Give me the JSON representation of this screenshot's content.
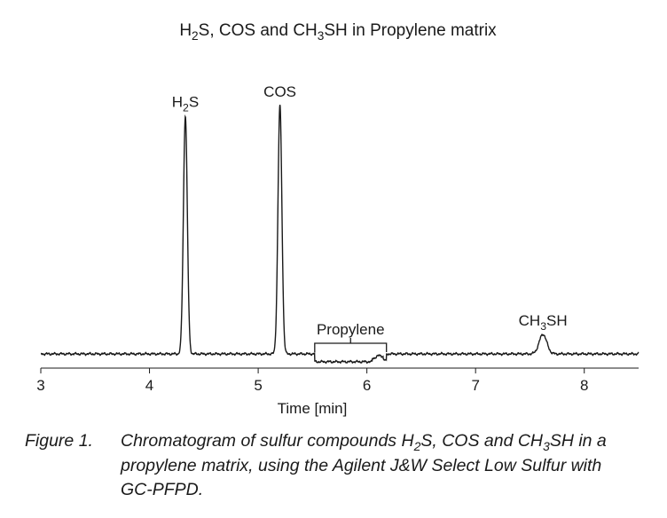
{
  "chart_data": {
    "type": "line",
    "title": {
      "parts": [
        "H",
        "2",
        "S, COS and CH",
        "3",
        "SH in Propylene matrix"
      ]
    },
    "xlabel": "Time [min]",
    "xlim": [
      3,
      8.5
    ],
    "ylim": [
      0,
      1.0
    ],
    "xticks": [
      3,
      4,
      5,
      6,
      7,
      8
    ],
    "xtick_labels": [
      "3",
      "4",
      "5",
      "6",
      "7",
      "8"
    ],
    "baseline": 0.0,
    "series": [
      {
        "peaks": [
          {
            "compound": "H2S",
            "label_parts": [
              "H",
              "2",
              "S"
            ],
            "rt": 4.33,
            "height": 0.91,
            "width": 0.018
          },
          {
            "compound": "COS",
            "label_parts": [
              "COS"
            ],
            "rt": 5.2,
            "height": 0.95,
            "width": 0.018
          },
          {
            "compound": "CH3SH",
            "label_parts": [
              "CH",
              "3",
              "SH"
            ],
            "rt": 7.62,
            "height": 0.075,
            "width": 0.035
          }
        ],
        "matrix_region": {
          "label": "Propylene",
          "start": 5.52,
          "end": 6.18
        }
      }
    ],
    "grid": false,
    "legend": "none"
  },
  "caption": {
    "label": "Figure 1.",
    "lines": [
      [
        "Chromatogram of sulfur compounds H",
        "2",
        "S, COS and CH",
        "3",
        "SH in a"
      ],
      [
        "propylene matrix, using the Agilent J&W Select Low Sulfur with"
      ],
      [
        "GC-PFPD."
      ]
    ]
  }
}
